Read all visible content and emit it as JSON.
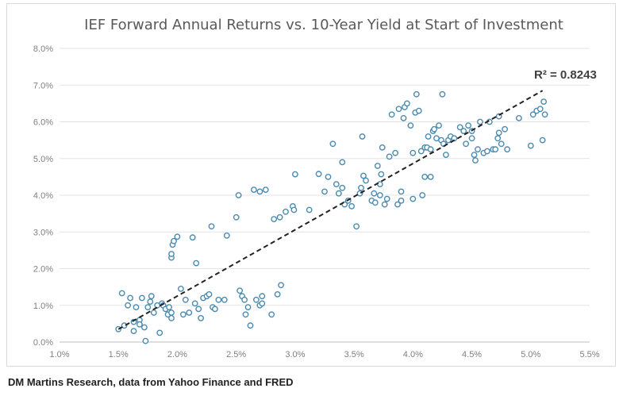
{
  "chart_data": {
    "type": "scatter",
    "title": "IEF Forward Annual Returns vs. 10-Year Yield at Start of Investment",
    "xlabel": "",
    "ylabel": "",
    "xlim": [
      0.01,
      0.055
    ],
    "ylim": [
      0.0,
      0.08
    ],
    "x_ticks": [
      "1.0%",
      "1.5%",
      "2.0%",
      "2.5%",
      "3.0%",
      "3.5%",
      "4.0%",
      "4.5%",
      "5.0%",
      "5.5%"
    ],
    "y_ticks": [
      "0.0%",
      "1.0%",
      "2.0%",
      "3.0%",
      "4.0%",
      "5.0%",
      "6.0%",
      "7.0%",
      "8.0%"
    ],
    "grid": "horizontal",
    "legend": "none",
    "annotation": "R² = 0.8243",
    "trendline": {
      "x": [
        0.015,
        0.051
      ],
      "y": [
        0.0035,
        0.0685
      ]
    },
    "marker_color": "#4a8ab0",
    "trend_color": "#222222",
    "points": [
      [
        0.015,
        0.0035
      ],
      [
        0.0153,
        0.0133
      ],
      [
        0.0155,
        0.0045
      ],
      [
        0.0158,
        0.01
      ],
      [
        0.016,
        0.012
      ],
      [
        0.0163,
        0.0055
      ],
      [
        0.0163,
        0.003
      ],
      [
        0.0165,
        0.0095
      ],
      [
        0.0168,
        0.006
      ],
      [
        0.0168,
        0.0048
      ],
      [
        0.017,
        0.012
      ],
      [
        0.0172,
        0.004
      ],
      [
        0.0173,
        0.0003
      ],
      [
        0.0175,
        0.0095
      ],
      [
        0.0177,
        0.011
      ],
      [
        0.0178,
        0.0125
      ],
      [
        0.018,
        0.008
      ],
      [
        0.0183,
        0.01
      ],
      [
        0.0185,
        0.0025
      ],
      [
        0.0187,
        0.0105
      ],
      [
        0.0188,
        0.01
      ],
      [
        0.019,
        0.009
      ],
      [
        0.0192,
        0.0075
      ],
      [
        0.0193,
        0.0095
      ],
      [
        0.0195,
        0.008
      ],
      [
        0.0195,
        0.0065
      ],
      [
        0.0195,
        0.023
      ],
      [
        0.0195,
        0.024
      ],
      [
        0.0196,
        0.0265
      ],
      [
        0.0197,
        0.0275
      ],
      [
        0.02,
        0.0287
      ],
      [
        0.0203,
        0.0145
      ],
      [
        0.0205,
        0.0075
      ],
      [
        0.0207,
        0.0115
      ],
      [
        0.021,
        0.008
      ],
      [
        0.0213,
        0.0285
      ],
      [
        0.0215,
        0.0105
      ],
      [
        0.0216,
        0.0215
      ],
      [
        0.0218,
        0.009
      ],
      [
        0.022,
        0.0065
      ],
      [
        0.0222,
        0.012
      ],
      [
        0.0225,
        0.0125
      ],
      [
        0.0227,
        0.013
      ],
      [
        0.0229,
        0.0315
      ],
      [
        0.023,
        0.0095
      ],
      [
        0.0232,
        0.009
      ],
      [
        0.0235,
        0.0115
      ],
      [
        0.024,
        0.0115
      ],
      [
        0.0242,
        0.029
      ],
      [
        0.025,
        0.034
      ],
      [
        0.0252,
        0.04
      ],
      [
        0.0253,
        0.014
      ],
      [
        0.0255,
        0.0125
      ],
      [
        0.0257,
        0.0115
      ],
      [
        0.0258,
        0.0075
      ],
      [
        0.026,
        0.0095
      ],
      [
        0.0262,
        0.0045
      ],
      [
        0.0265,
        0.0415
      ],
      [
        0.0267,
        0.0115
      ],
      [
        0.027,
        0.01
      ],
      [
        0.027,
        0.041
      ],
      [
        0.0272,
        0.0105
      ],
      [
        0.0272,
        0.0125
      ],
      [
        0.0275,
        0.0415
      ],
      [
        0.028,
        0.0075
      ],
      [
        0.0282,
        0.0335
      ],
      [
        0.0285,
        0.013
      ],
      [
        0.0287,
        0.034
      ],
      [
        0.0288,
        0.0155
      ],
      [
        0.0292,
        0.0355
      ],
      [
        0.0298,
        0.037
      ],
      [
        0.0299,
        0.036
      ],
      [
        0.03,
        0.0457
      ],
      [
        0.0312,
        0.036
      ],
      [
        0.032,
        0.0458
      ],
      [
        0.0325,
        0.041
      ],
      [
        0.0328,
        0.045
      ],
      [
        0.0332,
        0.054
      ],
      [
        0.0335,
        0.043
      ],
      [
        0.0337,
        0.0405
      ],
      [
        0.034,
        0.049
      ],
      [
        0.034,
        0.042
      ],
      [
        0.0342,
        0.0375
      ],
      [
        0.0345,
        0.0385
      ],
      [
        0.0348,
        0.037
      ],
      [
        0.0352,
        0.0315
      ],
      [
        0.0355,
        0.0405
      ],
      [
        0.0356,
        0.042
      ],
      [
        0.0357,
        0.056
      ],
      [
        0.0358,
        0.0453
      ],
      [
        0.036,
        0.044
      ],
      [
        0.0365,
        0.0385
      ],
      [
        0.0367,
        0.0405
      ],
      [
        0.0368,
        0.038
      ],
      [
        0.037,
        0.048
      ],
      [
        0.0372,
        0.04
      ],
      [
        0.0372,
        0.043
      ],
      [
        0.0373,
        0.0457
      ],
      [
        0.0374,
        0.053
      ],
      [
        0.0376,
        0.0375
      ],
      [
        0.0378,
        0.039
      ],
      [
        0.038,
        0.0505
      ],
      [
        0.0382,
        0.062
      ],
      [
        0.0385,
        0.0515
      ],
      [
        0.0387,
        0.0375
      ],
      [
        0.0388,
        0.0635
      ],
      [
        0.039,
        0.041
      ],
      [
        0.039,
        0.0385
      ],
      [
        0.0392,
        0.061
      ],
      [
        0.0393,
        0.064
      ],
      [
        0.0395,
        0.065
      ],
      [
        0.0398,
        0.059
      ],
      [
        0.04,
        0.0515
      ],
      [
        0.04,
        0.039
      ],
      [
        0.0402,
        0.0625
      ],
      [
        0.0403,
        0.0675
      ],
      [
        0.0405,
        0.063
      ],
      [
        0.0407,
        0.052
      ],
      [
        0.0408,
        0.04
      ],
      [
        0.041,
        0.053
      ],
      [
        0.041,
        0.045
      ],
      [
        0.0412,
        0.053
      ],
      [
        0.0413,
        0.056
      ],
      [
        0.0415,
        0.0525
      ],
      [
        0.0415,
        0.045
      ],
      [
        0.0417,
        0.0575
      ],
      [
        0.0418,
        0.058
      ],
      [
        0.042,
        0.0555
      ],
      [
        0.0422,
        0.059
      ],
      [
        0.0424,
        0.055
      ],
      [
        0.0425,
        0.0675
      ],
      [
        0.0426,
        0.054
      ],
      [
        0.0428,
        0.051
      ],
      [
        0.043,
        0.055
      ],
      [
        0.0432,
        0.056
      ],
      [
        0.0435,
        0.0555
      ],
      [
        0.044,
        0.0585
      ],
      [
        0.0443,
        0.0575
      ],
      [
        0.0445,
        0.054
      ],
      [
        0.0447,
        0.059
      ],
      [
        0.045,
        0.0575
      ],
      [
        0.045,
        0.0555
      ],
      [
        0.0452,
        0.051
      ],
      [
        0.0453,
        0.0495
      ],
      [
        0.0455,
        0.0525
      ],
      [
        0.0457,
        0.06
      ],
      [
        0.046,
        0.0515
      ],
      [
        0.0463,
        0.052
      ],
      [
        0.0465,
        0.06
      ],
      [
        0.0468,
        0.0525
      ],
      [
        0.047,
        0.0525
      ],
      [
        0.0472,
        0.0555
      ],
      [
        0.0473,
        0.057
      ],
      [
        0.0473,
        0.0615
      ],
      [
        0.0475,
        0.054
      ],
      [
        0.0478,
        0.058
      ],
      [
        0.048,
        0.0525
      ],
      [
        0.049,
        0.061
      ],
      [
        0.05,
        0.0535
      ],
      [
        0.0502,
        0.062
      ],
      [
        0.0505,
        0.063
      ],
      [
        0.0508,
        0.0635
      ],
      [
        0.051,
        0.055
      ],
      [
        0.0511,
        0.0655
      ],
      [
        0.0512,
        0.062
      ]
    ]
  },
  "footer": {
    "source": "DM Martins Research, data from Yahoo Finance and FRED"
  }
}
